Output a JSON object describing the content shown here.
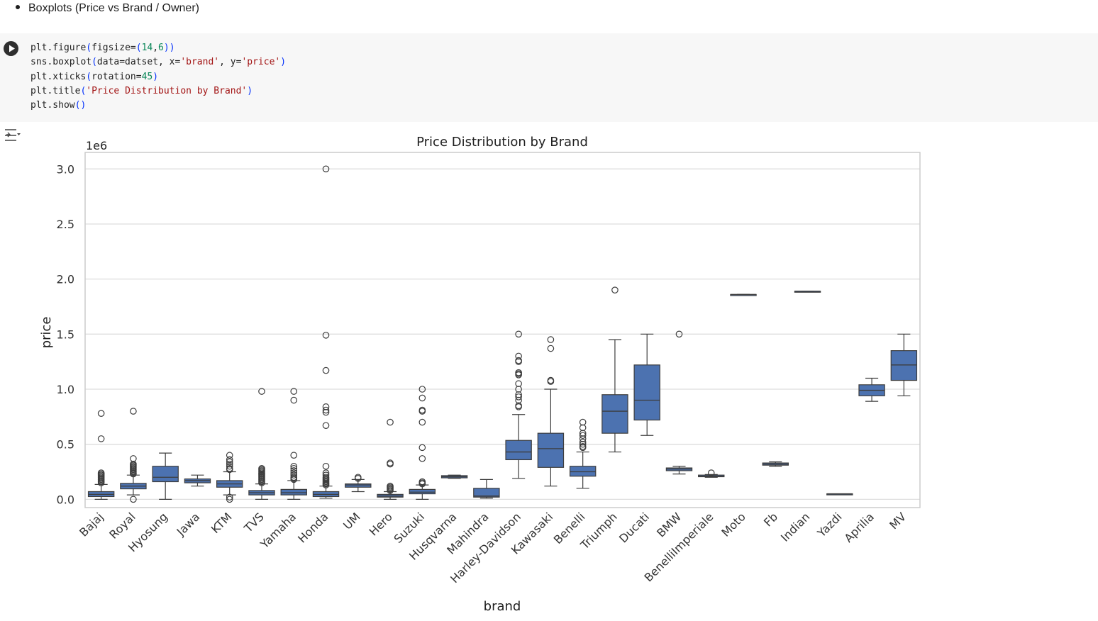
{
  "markdown": {
    "bullet_text": "Boxplots (Price vs Brand / Owner)"
  },
  "code_cell": {
    "lines": [
      [
        "plt.figure",
        "(",
        "figsize=",
        "(",
        "14",
        ",",
        "6",
        ")",
        ")"
      ],
      [
        "sns.boxplot",
        "(",
        "data=datset, x=",
        "'brand'",
        ", y=",
        "'price'",
        ")"
      ],
      [
        "plt.xticks",
        "(",
        "rotation=",
        "45",
        ")"
      ],
      [
        "plt.title",
        "(",
        "'Price Distribution by Brand'",
        ")"
      ],
      [
        "plt.show",
        "(",
        ")"
      ]
    ]
  },
  "chart_data": {
    "type": "boxplot",
    "title": "Price Distribution by Brand",
    "xlabel": "brand",
    "ylabel": "price",
    "y_scale_label": "1e6",
    "ylim": [
      -0.075,
      3.15
    ],
    "yticks": [
      0.0,
      0.5,
      1.0,
      1.5,
      2.0,
      2.5,
      3.0
    ],
    "ytick_labels": [
      "0.0",
      "0.5",
      "1.0",
      "1.5",
      "2.0",
      "2.5",
      "3.0"
    ],
    "x_tick_rotation": 45,
    "grid": true,
    "box_color": "#4c72b0",
    "line_color": "#3d3d3d",
    "categories": [
      "Bajaj",
      "Royal",
      "Hyosung",
      "Jawa",
      "KTM",
      "TVS",
      "Yamaha",
      "Honda",
      "UM",
      "Hero",
      "Suzuki",
      "Husqvarna",
      "Mahindra",
      "Harley-Davidson",
      "Kawasaki",
      "Benelli",
      "Triumph",
      "Ducati",
      "BMW",
      "BenelliImperiale",
      "Moto",
      "Fb",
      "Indian",
      "Yazdi",
      "Aprilia",
      "MV"
    ],
    "boxes": [
      {
        "brand": "Bajaj",
        "wlo": 0.0,
        "q1": 0.025,
        "med": 0.045,
        "q3": 0.07,
        "whi": 0.135,
        "fliers": [
          0.15,
          0.16,
          0.17,
          0.18,
          0.19,
          0.2,
          0.21,
          0.22,
          0.23,
          0.24,
          0.55,
          0.78
        ]
      },
      {
        "brand": "Royal",
        "wlo": 0.04,
        "q1": 0.095,
        "med": 0.12,
        "q3": 0.145,
        "whi": 0.22,
        "fliers": [
          0.0,
          0.23,
          0.24,
          0.25,
          0.26,
          0.27,
          0.28,
          0.29,
          0.3,
          0.31,
          0.32,
          0.37,
          0.8
        ]
      },
      {
        "brand": "Hyosung",
        "wlo": 0.0,
        "q1": 0.16,
        "med": 0.2,
        "q3": 0.3,
        "whi": 0.42,
        "fliers": []
      },
      {
        "brand": "Jawa",
        "wlo": 0.12,
        "q1": 0.15,
        "med": 0.17,
        "q3": 0.185,
        "whi": 0.22,
        "fliers": []
      },
      {
        "brand": "KTM",
        "wlo": 0.04,
        "q1": 0.11,
        "med": 0.14,
        "q3": 0.17,
        "whi": 0.25,
        "fliers": [
          0.0,
          0.02,
          0.27,
          0.28,
          0.3,
          0.32,
          0.34,
          0.36,
          0.4
        ]
      },
      {
        "brand": "TVS",
        "wlo": 0.0,
        "q1": 0.04,
        "med": 0.06,
        "q3": 0.08,
        "whi": 0.14,
        "fliers": [
          0.15,
          0.16,
          0.17,
          0.18,
          0.19,
          0.2,
          0.21,
          0.22,
          0.23,
          0.24,
          0.25,
          0.26,
          0.27,
          0.28,
          0.98
        ]
      },
      {
        "brand": "Yamaha",
        "wlo": 0.0,
        "q1": 0.04,
        "med": 0.06,
        "q3": 0.09,
        "whi": 0.17,
        "fliers": [
          0.18,
          0.19,
          0.2,
          0.22,
          0.24,
          0.26,
          0.28,
          0.3,
          0.4,
          0.9,
          0.98
        ]
      },
      {
        "brand": "Honda",
        "wlo": 0.01,
        "q1": 0.025,
        "med": 0.045,
        "q3": 0.07,
        "whi": 0.12,
        "fliers": [
          0.13,
          0.14,
          0.15,
          0.16,
          0.17,
          0.18,
          0.19,
          0.2,
          0.22,
          0.24,
          0.3,
          0.67,
          0.79,
          0.81,
          0.84,
          1.17,
          1.49,
          3.0
        ]
      },
      {
        "brand": "UM",
        "wlo": 0.07,
        "q1": 0.11,
        "med": 0.13,
        "q3": 0.14,
        "whi": 0.18,
        "fliers": [
          0.19,
          0.2
        ]
      },
      {
        "brand": "Hero",
        "wlo": 0.0,
        "q1": 0.02,
        "med": 0.03,
        "q3": 0.045,
        "whi": 0.07,
        "fliers": [
          0.08,
          0.09,
          0.1,
          0.11,
          0.12,
          0.32,
          0.33,
          0.7
        ]
      },
      {
        "brand": "Suzuki",
        "wlo": 0.0,
        "q1": 0.05,
        "med": 0.065,
        "q3": 0.09,
        "whi": 0.13,
        "fliers": [
          0.14,
          0.15,
          0.16,
          0.37,
          0.47,
          0.7,
          0.8,
          0.81,
          0.92,
          1.0
        ]
      },
      {
        "brand": "Husqvarna",
        "wlo": 0.19,
        "q1": 0.195,
        "med": 0.205,
        "q3": 0.215,
        "whi": 0.22,
        "fliers": []
      },
      {
        "brand": "Mahindra",
        "wlo": 0.01,
        "q1": 0.02,
        "med": 0.03,
        "q3": 0.1,
        "whi": 0.18,
        "fliers": []
      },
      {
        "brand": "Harley-Davidson",
        "wlo": 0.19,
        "q1": 0.36,
        "med": 0.43,
        "q3": 0.535,
        "whi": 0.77,
        "fliers": [
          0.84,
          0.85,
          0.9,
          0.93,
          0.95,
          1.0,
          1.05,
          1.13,
          1.14,
          1.15,
          1.25,
          1.26,
          1.3,
          1.5
        ]
      },
      {
        "brand": "Kawasaki",
        "wlo": 0.12,
        "q1": 0.29,
        "med": 0.46,
        "q3": 0.6,
        "whi": 1.0,
        "fliers": [
          1.07,
          1.08,
          1.37,
          1.45
        ]
      },
      {
        "brand": "Benelli",
        "wlo": 0.1,
        "q1": 0.21,
        "med": 0.25,
        "q3": 0.3,
        "whi": 0.43,
        "fliers": [
          0.47,
          0.48,
          0.5,
          0.52,
          0.55,
          0.58,
          0.6,
          0.65,
          0.7
        ]
      },
      {
        "brand": "Triumph",
        "wlo": 0.43,
        "q1": 0.6,
        "med": 0.8,
        "q3": 0.95,
        "whi": 1.45,
        "fliers": [
          1.9
        ]
      },
      {
        "brand": "Ducati",
        "wlo": 0.58,
        "q1": 0.72,
        "med": 0.9,
        "q3": 1.22,
        "whi": 1.5,
        "fliers": []
      },
      {
        "brand": "BMW",
        "wlo": 0.23,
        "q1": 0.26,
        "med": 0.275,
        "q3": 0.285,
        "whi": 0.3,
        "fliers": [
          1.5
        ]
      },
      {
        "brand": "BenelliImperiale",
        "wlo": 0.2,
        "q1": 0.205,
        "med": 0.21,
        "q3": 0.22,
        "whi": 0.225,
        "fliers": [
          0.24
        ]
      },
      {
        "brand": "Moto",
        "wlo": 1.86,
        "q1": 1.86,
        "med": 1.86,
        "q3": 1.86,
        "whi": 1.86,
        "fliers": []
      },
      {
        "brand": "Fb",
        "wlo": 0.3,
        "q1": 0.31,
        "med": 0.32,
        "q3": 0.33,
        "whi": 0.34,
        "fliers": []
      },
      {
        "brand": "Indian",
        "wlo": 1.89,
        "q1": 1.89,
        "med": 1.89,
        "q3": 1.89,
        "whi": 1.89,
        "fliers": []
      },
      {
        "brand": "Yazdi",
        "wlo": 0.05,
        "q1": 0.05,
        "med": 0.05,
        "q3": 0.05,
        "whi": 0.05,
        "fliers": []
      },
      {
        "brand": "Aprilia",
        "wlo": 0.89,
        "q1": 0.94,
        "med": 0.99,
        "q3": 1.04,
        "whi": 1.1,
        "fliers": []
      },
      {
        "brand": "MV",
        "wlo": 0.94,
        "q1": 1.08,
        "med": 1.22,
        "q3": 1.35,
        "whi": 1.5,
        "fliers": []
      }
    ]
  }
}
